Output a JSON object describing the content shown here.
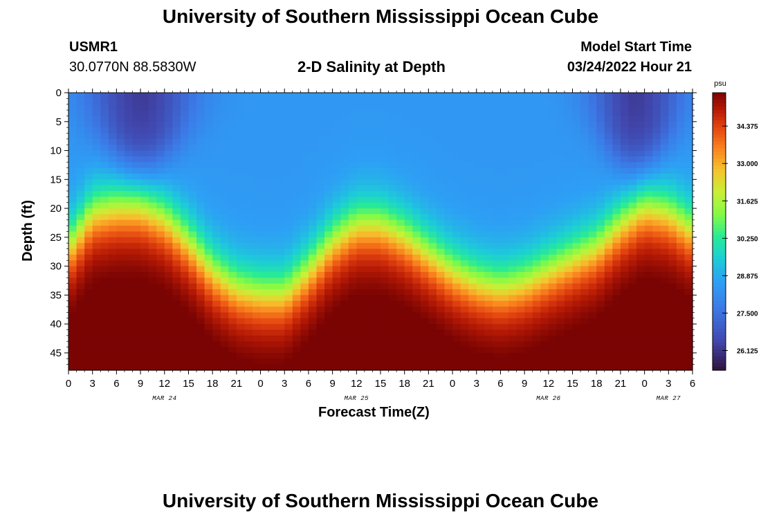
{
  "header": {
    "title": "University of Southern Mississippi Ocean Cube",
    "station_id": "USMR1",
    "coords": "30.0770N  88.5830W",
    "subtitle": "2-D Salinity at Depth",
    "model_label": "Model Start Time",
    "model_time": "03/24/2022 Hour 21"
  },
  "footer": {
    "title": "University of Southern Mississippi Ocean Cube"
  },
  "chart_data": {
    "type": "heatmap",
    "title": "2-D Salinity at Depth",
    "xlabel": "Forecast Time(Z)",
    "ylabel": "Depth (ft)",
    "units": "psu",
    "xlim_hours": [
      0,
      78
    ],
    "ylim_ft": [
      0,
      48
    ],
    "y_ticks": [
      0,
      5,
      10,
      15,
      20,
      25,
      30,
      35,
      40,
      45
    ],
    "x_ticks": [
      "0",
      "3",
      "6",
      "9",
      "12",
      "15",
      "18",
      "21",
      "0",
      "3",
      "6",
      "9",
      "12",
      "15",
      "18",
      "21",
      "0",
      "3",
      "6",
      "9",
      "12",
      "15",
      "18",
      "21",
      "0",
      "3",
      "6"
    ],
    "date_labels": [
      {
        "label": "MAR 24",
        "hour": 12
      },
      {
        "label": "MAR 25",
        "hour": 36
      },
      {
        "label": "MAR 26",
        "hour": 60
      },
      {
        "label": "MAR 27",
        "hour": 75
      }
    ],
    "colorbar": {
      "min": 25.4,
      "max": 35.6,
      "ticks": [
        "34.375",
        "33.000",
        "31.625",
        "30.250",
        "28.875",
        "27.500",
        "26.125"
      ]
    },
    "interface_depth_ft": [
      {
        "hour": 0,
        "depth": 27
      },
      {
        "hour": 3,
        "depth": 21
      },
      {
        "hour": 6,
        "depth": 20
      },
      {
        "hour": 9,
        "depth": 20
      },
      {
        "hour": 12,
        "depth": 22
      },
      {
        "hour": 15,
        "depth": 26
      },
      {
        "hour": 18,
        "depth": 31
      },
      {
        "hour": 21,
        "depth": 34
      },
      {
        "hour": 24,
        "depth": 35
      },
      {
        "hour": 27,
        "depth": 35
      },
      {
        "hour": 30,
        "depth": 31
      },
      {
        "hour": 33,
        "depth": 26
      },
      {
        "hour": 36,
        "depth": 23
      },
      {
        "hour": 39,
        "depth": 23
      },
      {
        "hour": 42,
        "depth": 25
      },
      {
        "hour": 45,
        "depth": 28
      },
      {
        "hour": 48,
        "depth": 31
      },
      {
        "hour": 51,
        "depth": 33
      },
      {
        "hour": 54,
        "depth": 34
      },
      {
        "hour": 57,
        "depth": 33
      },
      {
        "hour": 60,
        "depth": 31
      },
      {
        "hour": 63,
        "depth": 29
      },
      {
        "hour": 66,
        "depth": 27
      },
      {
        "hour": 69,
        "depth": 23
      },
      {
        "hour": 72,
        "depth": 20
      },
      {
        "hour": 75,
        "depth": 21
      },
      {
        "hour": 78,
        "depth": 24
      }
    ]
  }
}
